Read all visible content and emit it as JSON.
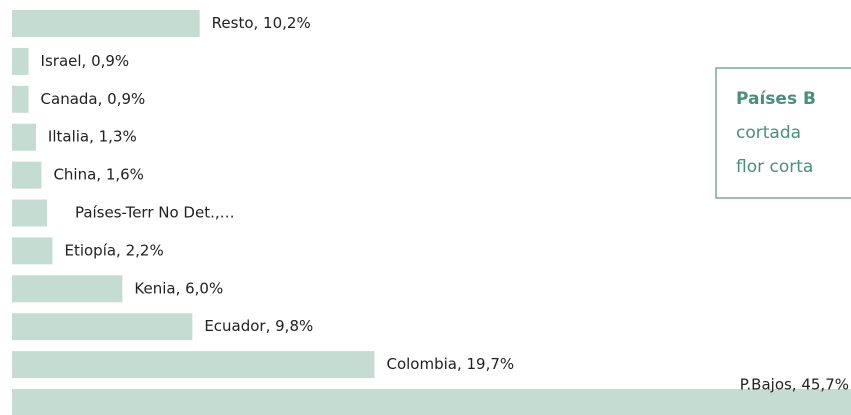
{
  "chart_data": {
    "type": "hbar",
    "values": [
      10.2,
      0.9,
      0.9,
      1.3,
      1.6,
      1.9,
      2.2,
      6.0,
      9.8,
      19.7,
      45.7
    ],
    "value_labels": [
      "Resto, 10,2%",
      "Israel, 0,9%",
      "Canada, 0,9%",
      "Iltalia, 1,3%",
      "China, 1,6%",
      "Países-Terr No Det.,…",
      "Etiopía, 2,2%",
      "Kenia, 6,0%",
      "Ecuador, 9,8%",
      "Colombia, 19,7%",
      "P.Bajos, 45,7%"
    ],
    "color": "#c5dcd3",
    "annotation": [
      "Países B",
      "cortada",
      "flor corta"
    ]
  }
}
